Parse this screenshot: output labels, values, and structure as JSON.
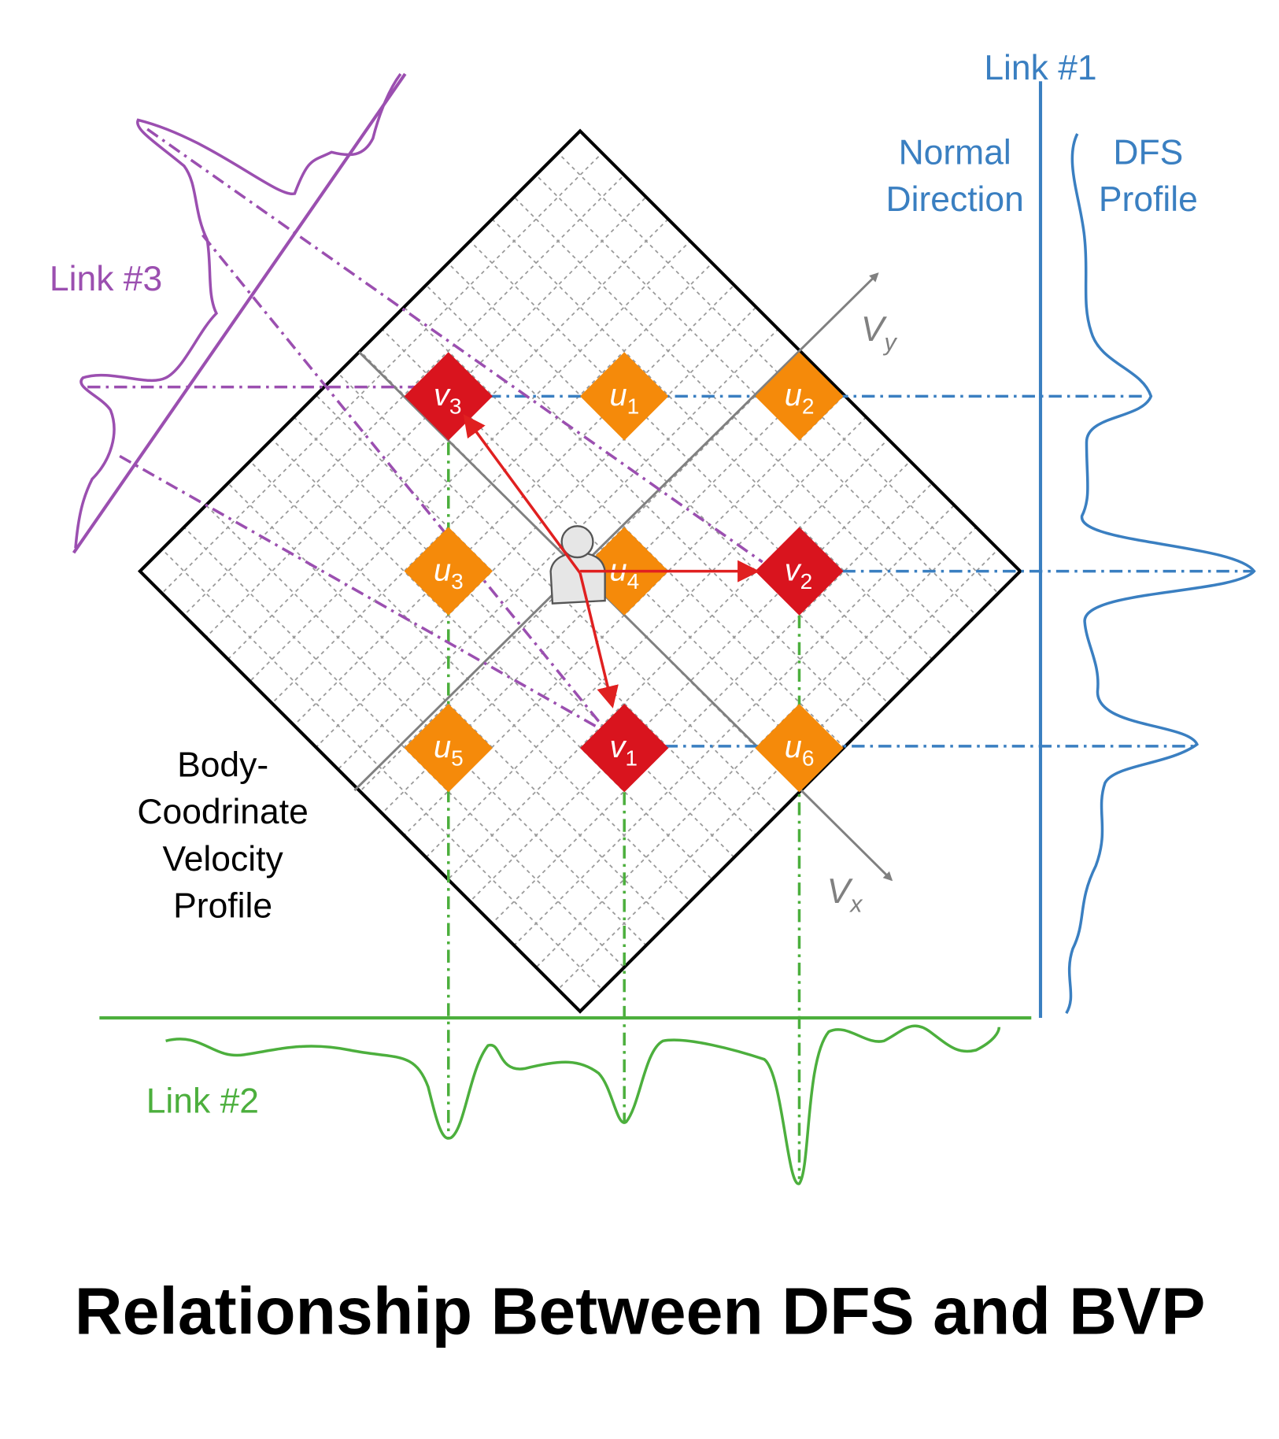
{
  "title": "Relationship Between DFS and BVP",
  "link1": {
    "label": "Link #1",
    "normal": [
      "Normal",
      "Direction"
    ],
    "profile": [
      "DFS",
      "Profile"
    ]
  },
  "link2": {
    "label": "Link #2"
  },
  "link3": {
    "label": "Link #3"
  },
  "body_label": [
    "Body-",
    "Coodrinate",
    "Velocity",
    "Profile"
  ],
  "axes": [
    {
      "letter": "V",
      "sub": "y"
    },
    {
      "letter": "V",
      "sub": "x"
    }
  ],
  "nodes": [
    {
      "letter": "v",
      "sub": "3"
    },
    {
      "letter": "u",
      "sub": "1"
    },
    {
      "letter": "u",
      "sub": "2"
    },
    {
      "letter": "u",
      "sub": "3"
    },
    {
      "letter": "u",
      "sub": "4"
    },
    {
      "letter": "v",
      "sub": "2"
    },
    {
      "letter": "u",
      "sub": "5"
    },
    {
      "letter": "v",
      "sub": "1"
    },
    {
      "letter": "u",
      "sub": "6"
    }
  ]
}
